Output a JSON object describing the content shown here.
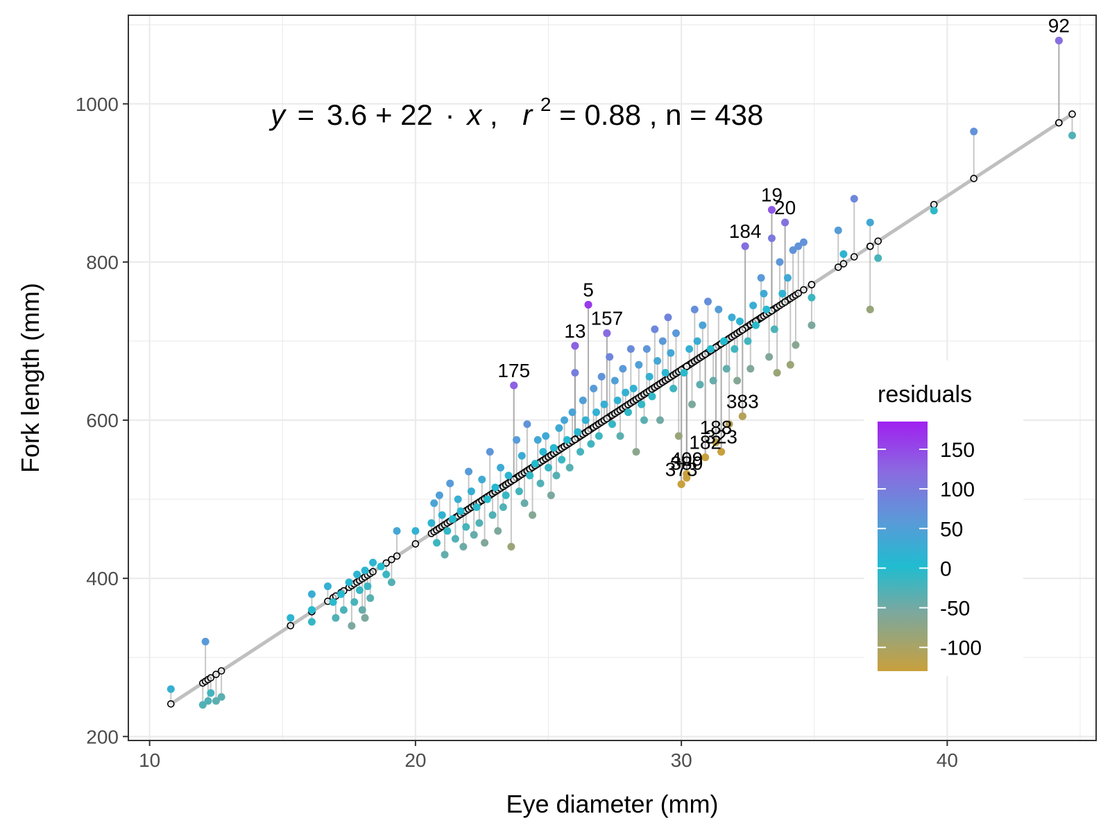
{
  "chart_data": {
    "type": "scatter",
    "xlabel": "Eye diameter (mm)",
    "ylabel": "Fork length (mm)",
    "xlim": [
      9.2,
      45.6
    ],
    "ylim": [
      195,
      1112
    ],
    "x_ticks": [
      10,
      20,
      30,
      40
    ],
    "y_ticks": [
      200,
      400,
      600,
      800,
      1000
    ],
    "grid": true,
    "equation": {
      "y": "y",
      "eq": "=",
      "intercept": "3.6",
      "plus": "+",
      "slope": "22",
      "dot": "·",
      "x": "x",
      "comma": ",",
      "r": "r",
      "sup": "2",
      "rest": " = 0.88 , n = 438"
    },
    "fit": {
      "intercept": 3.6,
      "slope": 22.0
    },
    "colors": {
      "fit_line": "#bfbfbf",
      "segment": "#999999",
      "high": "#a020f0",
      "mid": "#20bcd0",
      "low": "#c9a03c"
    },
    "legend": {
      "title": "residuals",
      "position": "right",
      "ticks": [
        150,
        100,
        50,
        0,
        -50,
        -100
      ],
      "labels": [
        "150",
        "100",
        "50",
        "0",
        "-50",
        "-100"
      ],
      "range": [
        -130,
        185
      ]
    },
    "labeled_points": [
      {
        "label": "92",
        "x": 44.2,
        "y": 1080
      },
      {
        "label": "19",
        "x": 33.4,
        "y": 866
      },
      {
        "label": "20",
        "x": 33.9,
        "y": 850
      },
      {
        "label": "184",
        "x": 32.4,
        "y": 820
      },
      {
        "label": "5",
        "x": 26.5,
        "y": 746
      },
      {
        "label": "157",
        "x": 27.2,
        "y": 710
      },
      {
        "label": "13",
        "x": 26.0,
        "y": 694
      },
      {
        "label": "175",
        "x": 23.7,
        "y": 644
      },
      {
        "label": "383",
        "x": 32.3,
        "y": 605
      },
      {
        "label": "188",
        "x": 31.3,
        "y": 572
      },
      {
        "label": "182",
        "x": 30.9,
        "y": 553
      },
      {
        "label": "323",
        "x": 31.5,
        "y": 560
      },
      {
        "label": "380",
        "x": 30.2,
        "y": 527
      },
      {
        "label": "409",
        "x": 30.2,
        "y": 532
      },
      {
        "label": "373",
        "x": 30.0,
        "y": 519
      }
    ],
    "points": [
      [
        10.8,
        260
      ],
      [
        12.0,
        240
      ],
      [
        12.1,
        320
      ],
      [
        12.2,
        245
      ],
      [
        12.3,
        255
      ],
      [
        12.5,
        245
      ],
      [
        12.7,
        250
      ],
      [
        15.3,
        350
      ],
      [
        16.1,
        345
      ],
      [
        16.1,
        380
      ],
      [
        16.1,
        360
      ],
      [
        16.7,
        390
      ],
      [
        16.9,
        370
      ],
      [
        17.0,
        350
      ],
      [
        17.2,
        380
      ],
      [
        17.3,
        360
      ],
      [
        17.5,
        395
      ],
      [
        17.6,
        340
      ],
      [
        17.7,
        370
      ],
      [
        17.8,
        405
      ],
      [
        17.9,
        385
      ],
      [
        18.0,
        360
      ],
      [
        18.1,
        350
      ],
      [
        18.1,
        410
      ],
      [
        18.2,
        390
      ],
      [
        18.3,
        375
      ],
      [
        18.4,
        420
      ],
      [
        18.7,
        415
      ],
      [
        18.9,
        405
      ],
      [
        19.1,
        395
      ],
      [
        19.3,
        460
      ],
      [
        20.0,
        460
      ],
      [
        20.6,
        470
      ],
      [
        20.7,
        495
      ],
      [
        20.8,
        445
      ],
      [
        20.9,
        505
      ],
      [
        21.0,
        480
      ],
      [
        21.1,
        430
      ],
      [
        21.2,
        460
      ],
      [
        21.3,
        520
      ],
      [
        21.4,
        475
      ],
      [
        21.5,
        450
      ],
      [
        21.6,
        500
      ],
      [
        21.7,
        485
      ],
      [
        21.8,
        440
      ],
      [
        21.9,
        465
      ],
      [
        22.0,
        535
      ],
      [
        22.1,
        510
      ],
      [
        22.2,
        455
      ],
      [
        22.3,
        490
      ],
      [
        22.4,
        470
      ],
      [
        22.5,
        525
      ],
      [
        22.6,
        445
      ],
      [
        22.7,
        500
      ],
      [
        22.8,
        560
      ],
      [
        22.9,
        480
      ],
      [
        23.0,
        515
      ],
      [
        23.1,
        460
      ],
      [
        23.2,
        540
      ],
      [
        23.3,
        490
      ],
      [
        23.4,
        505
      ],
      [
        23.5,
        530
      ],
      [
        23.6,
        440
      ],
      [
        23.7,
        644
      ],
      [
        23.8,
        575
      ],
      [
        23.9,
        510
      ],
      [
        24.0,
        555
      ],
      [
        24.1,
        495
      ],
      [
        24.2,
        595
      ],
      [
        24.3,
        530
      ],
      [
        24.4,
        480
      ],
      [
        24.5,
        545
      ],
      [
        24.6,
        575
      ],
      [
        24.7,
        520
      ],
      [
        24.8,
        560
      ],
      [
        24.9,
        580
      ],
      [
        25.0,
        540
      ],
      [
        25.1,
        505
      ],
      [
        25.2,
        565
      ],
      [
        25.3,
        530
      ],
      [
        25.4,
        590
      ],
      [
        25.5,
        550
      ],
      [
        25.6,
        600
      ],
      [
        25.7,
        575
      ],
      [
        25.8,
        540
      ],
      [
        25.9,
        610
      ],
      [
        26.0,
        694
      ],
      [
        26.0,
        660
      ],
      [
        26.1,
        585
      ],
      [
        26.2,
        560
      ],
      [
        26.3,
        625
      ],
      [
        26.4,
        600
      ],
      [
        26.5,
        746
      ],
      [
        26.6,
        570
      ],
      [
        26.7,
        640
      ],
      [
        26.8,
        610
      ],
      [
        26.9,
        580
      ],
      [
        27.0,
        655
      ],
      [
        27.1,
        620
      ],
      [
        27.2,
        710
      ],
      [
        27.3,
        680
      ],
      [
        27.4,
        595
      ],
      [
        27.5,
        650
      ],
      [
        27.6,
        625
      ],
      [
        27.7,
        580
      ],
      [
        27.8,
        665
      ],
      [
        27.9,
        635
      ],
      [
        28.0,
        610
      ],
      [
        28.1,
        690
      ],
      [
        28.2,
        640
      ],
      [
        28.3,
        560
      ],
      [
        28.4,
        670
      ],
      [
        28.5,
        620
      ],
      [
        28.6,
        600
      ],
      [
        28.7,
        690
      ],
      [
        28.8,
        655
      ],
      [
        28.9,
        630
      ],
      [
        29.0,
        715
      ],
      [
        29.1,
        675
      ],
      [
        29.2,
        600
      ],
      [
        29.3,
        700
      ],
      [
        29.4,
        660
      ],
      [
        29.5,
        730
      ],
      [
        29.6,
        685
      ],
      [
        29.7,
        640
      ],
      [
        29.8,
        710
      ],
      [
        29.9,
        580
      ],
      [
        30.0,
        519
      ],
      [
        30.1,
        660
      ],
      [
        30.2,
        532
      ],
      [
        30.3,
        690
      ],
      [
        30.4,
        620
      ],
      [
        30.5,
        740
      ],
      [
        30.6,
        700
      ],
      [
        30.7,
        645
      ],
      [
        30.8,
        720
      ],
      [
        30.9,
        553
      ],
      [
        31.0,
        750
      ],
      [
        31.1,
        690
      ],
      [
        31.2,
        650
      ],
      [
        31.3,
        572
      ],
      [
        31.4,
        740
      ],
      [
        31.5,
        560
      ],
      [
        31.6,
        700
      ],
      [
        31.7,
        665
      ],
      [
        31.8,
        595
      ],
      [
        31.9,
        730
      ],
      [
        32.0,
        690
      ],
      [
        32.1,
        650
      ],
      [
        32.2,
        725
      ],
      [
        32.3,
        605
      ],
      [
        32.4,
        820
      ],
      [
        32.5,
        700
      ],
      [
        32.6,
        665
      ],
      [
        32.7,
        745
      ],
      [
        32.8,
        720
      ],
      [
        33.0,
        780
      ],
      [
        33.1,
        760
      ],
      [
        33.2,
        740
      ],
      [
        33.3,
        680
      ],
      [
        33.4,
        866
      ],
      [
        33.4,
        830
      ],
      [
        33.5,
        715
      ],
      [
        33.6,
        660
      ],
      [
        33.7,
        800
      ],
      [
        33.8,
        760
      ],
      [
        33.9,
        850
      ],
      [
        34.0,
        780
      ],
      [
        34.1,
        670
      ],
      [
        34.2,
        815
      ],
      [
        34.3,
        695
      ],
      [
        34.4,
        820
      ],
      [
        34.6,
        825
      ],
      [
        34.9,
        755
      ],
      [
        34.9,
        720
      ],
      [
        35.9,
        840
      ],
      [
        36.1,
        810
      ],
      [
        36.5,
        880
      ],
      [
        37.1,
        850
      ],
      [
        37.1,
        740
      ],
      [
        37.4,
        805
      ],
      [
        39.5,
        865
      ],
      [
        41.0,
        965
      ],
      [
        44.2,
        1080
      ],
      [
        44.7,
        960
      ]
    ]
  }
}
